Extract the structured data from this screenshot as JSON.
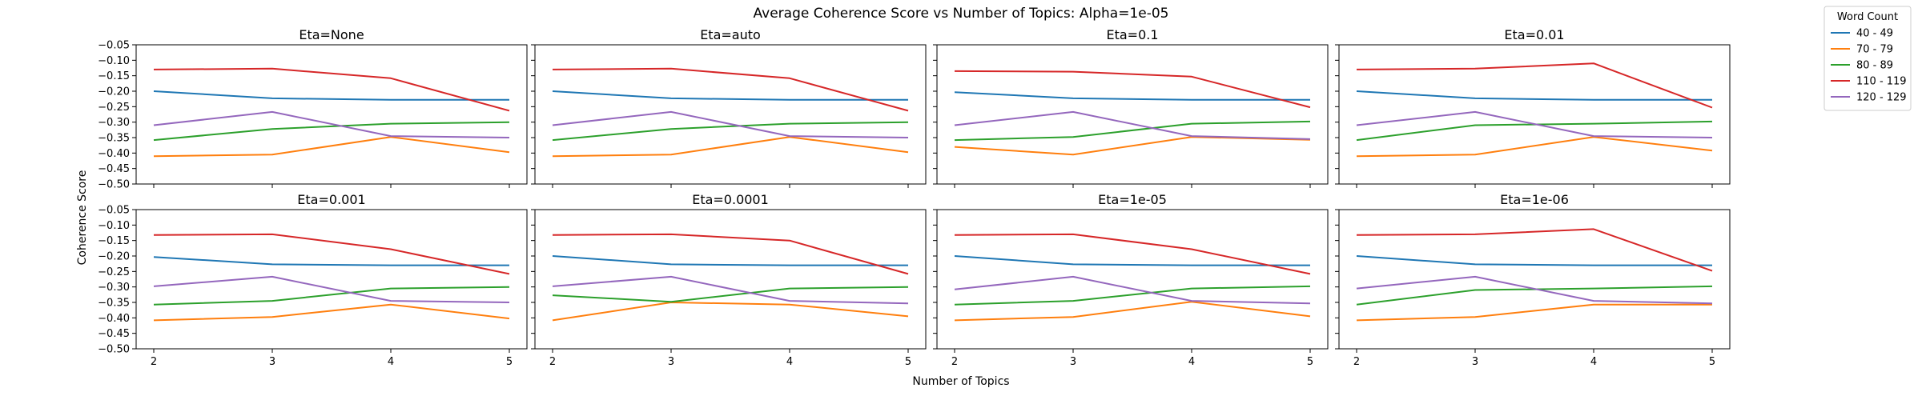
{
  "figure": {
    "title": "Average Coherence Score vs Number of Topics: Alpha=1e-05",
    "xlabel": "Number of Topics",
    "ylabel": "Coherence Score"
  },
  "legend": {
    "title": "Word Count",
    "position": "top-right, outside plot area"
  },
  "chart_data": [
    {
      "type": "line",
      "title": "Eta=None",
      "x": [
        2,
        3,
        4,
        5
      ],
      "xlim": [
        2,
        5
      ],
      "ylim": [
        -0.5,
        -0.05
      ],
      "yticks": [
        -0.05,
        -0.1,
        -0.15,
        -0.2,
        -0.25,
        -0.3,
        -0.35,
        -0.4,
        -0.45,
        -0.5
      ],
      "series": [
        {
          "name": "40 - 49",
          "color": "#1f77b4",
          "values": [
            -0.2,
            -0.223,
            -0.228,
            -0.228
          ]
        },
        {
          "name": "70 - 79",
          "color": "#ff7f0e",
          "values": [
            -0.41,
            -0.405,
            -0.348,
            -0.397
          ]
        },
        {
          "name": "80 - 89",
          "color": "#2ca02c",
          "values": [
            -0.358,
            -0.322,
            -0.305,
            -0.3
          ]
        },
        {
          "name": "110 - 119",
          "color": "#d62728",
          "values": [
            -0.13,
            -0.127,
            -0.158,
            -0.263
          ]
        },
        {
          "name": "120 - 129",
          "color": "#9467bd",
          "values": [
            -0.31,
            -0.267,
            -0.345,
            -0.35
          ]
        }
      ]
    },
    {
      "type": "line",
      "title": "Eta=auto",
      "x": [
        2,
        3,
        4,
        5
      ],
      "xlim": [
        2,
        5
      ],
      "ylim": [
        -0.5,
        -0.05
      ],
      "yticks": [
        -0.05,
        -0.1,
        -0.15,
        -0.2,
        -0.25,
        -0.3,
        -0.35,
        -0.4,
        -0.45,
        -0.5
      ],
      "series": [
        {
          "name": "40 - 49",
          "color": "#1f77b4",
          "values": [
            -0.2,
            -0.223,
            -0.228,
            -0.228
          ]
        },
        {
          "name": "70 - 79",
          "color": "#ff7f0e",
          "values": [
            -0.41,
            -0.405,
            -0.348,
            -0.397
          ]
        },
        {
          "name": "80 - 89",
          "color": "#2ca02c",
          "values": [
            -0.358,
            -0.322,
            -0.305,
            -0.3
          ]
        },
        {
          "name": "110 - 119",
          "color": "#d62728",
          "values": [
            -0.13,
            -0.127,
            -0.158,
            -0.263
          ]
        },
        {
          "name": "120 - 129",
          "color": "#9467bd",
          "values": [
            -0.31,
            -0.267,
            -0.345,
            -0.35
          ]
        }
      ]
    },
    {
      "type": "line",
      "title": "Eta=0.1",
      "x": [
        2,
        3,
        4,
        5
      ],
      "xlim": [
        2,
        5
      ],
      "ylim": [
        -0.5,
        -0.05
      ],
      "yticks": [
        -0.05,
        -0.1,
        -0.15,
        -0.2,
        -0.25,
        -0.3,
        -0.35,
        -0.4,
        -0.45,
        -0.5
      ],
      "series": [
        {
          "name": "40 - 49",
          "color": "#1f77b4",
          "values": [
            -0.203,
            -0.223,
            -0.228,
            -0.228
          ]
        },
        {
          "name": "70 - 79",
          "color": "#ff7f0e",
          "values": [
            -0.38,
            -0.405,
            -0.348,
            -0.357
          ]
        },
        {
          "name": "80 - 89",
          "color": "#2ca02c",
          "values": [
            -0.358,
            -0.348,
            -0.305,
            -0.298
          ]
        },
        {
          "name": "110 - 119",
          "color": "#d62728",
          "values": [
            -0.135,
            -0.137,
            -0.153,
            -0.252
          ]
        },
        {
          "name": "120 - 129",
          "color": "#9467bd",
          "values": [
            -0.31,
            -0.267,
            -0.345,
            -0.355
          ]
        }
      ]
    },
    {
      "type": "line",
      "title": "Eta=0.01",
      "x": [
        2,
        3,
        4,
        5
      ],
      "xlim": [
        2,
        5
      ],
      "ylim": [
        -0.5,
        -0.05
      ],
      "yticks": [
        -0.05,
        -0.1,
        -0.15,
        -0.2,
        -0.25,
        -0.3,
        -0.35,
        -0.4,
        -0.45,
        -0.5
      ],
      "series": [
        {
          "name": "40 - 49",
          "color": "#1f77b4",
          "values": [
            -0.2,
            -0.223,
            -0.228,
            -0.228
          ]
        },
        {
          "name": "70 - 79",
          "color": "#ff7f0e",
          "values": [
            -0.41,
            -0.405,
            -0.348,
            -0.392
          ]
        },
        {
          "name": "80 - 89",
          "color": "#2ca02c",
          "values": [
            -0.358,
            -0.31,
            -0.305,
            -0.298
          ]
        },
        {
          "name": "110 - 119",
          "color": "#d62728",
          "values": [
            -0.13,
            -0.127,
            -0.11,
            -0.253
          ]
        },
        {
          "name": "120 - 129",
          "color": "#9467bd",
          "values": [
            -0.31,
            -0.267,
            -0.345,
            -0.35
          ]
        }
      ]
    },
    {
      "type": "line",
      "title": "Eta=0.001",
      "x": [
        2,
        3,
        4,
        5
      ],
      "xlim": [
        2,
        5
      ],
      "ylim": [
        -0.5,
        -0.05
      ],
      "yticks": [
        -0.05,
        -0.1,
        -0.15,
        -0.2,
        -0.25,
        -0.3,
        -0.35,
        -0.4,
        -0.45,
        -0.5
      ],
      "series": [
        {
          "name": "40 - 49",
          "color": "#1f77b4",
          "values": [
            -0.203,
            -0.227,
            -0.23,
            -0.23
          ]
        },
        {
          "name": "70 - 79",
          "color": "#ff7f0e",
          "values": [
            -0.408,
            -0.397,
            -0.357,
            -0.402
          ]
        },
        {
          "name": "80 - 89",
          "color": "#2ca02c",
          "values": [
            -0.357,
            -0.345,
            -0.305,
            -0.3
          ]
        },
        {
          "name": "110 - 119",
          "color": "#d62728",
          "values": [
            -0.132,
            -0.13,
            -0.178,
            -0.258
          ]
        },
        {
          "name": "120 - 129",
          "color": "#9467bd",
          "values": [
            -0.298,
            -0.267,
            -0.345,
            -0.35
          ]
        }
      ]
    },
    {
      "type": "line",
      "title": "Eta=0.0001",
      "x": [
        2,
        3,
        4,
        5
      ],
      "xlim": [
        2,
        5
      ],
      "ylim": [
        -0.5,
        -0.05
      ],
      "yticks": [
        -0.05,
        -0.1,
        -0.15,
        -0.2,
        -0.25,
        -0.3,
        -0.35,
        -0.4,
        -0.45,
        -0.5
      ],
      "series": [
        {
          "name": "40 - 49",
          "color": "#1f77b4",
          "values": [
            -0.2,
            -0.227,
            -0.23,
            -0.23
          ]
        },
        {
          "name": "70 - 79",
          "color": "#ff7f0e",
          "values": [
            -0.408,
            -0.35,
            -0.357,
            -0.395
          ]
        },
        {
          "name": "80 - 89",
          "color": "#2ca02c",
          "values": [
            -0.327,
            -0.348,
            -0.305,
            -0.3
          ]
        },
        {
          "name": "110 - 119",
          "color": "#d62728",
          "values": [
            -0.132,
            -0.13,
            -0.15,
            -0.258
          ]
        },
        {
          "name": "120 - 129",
          "color": "#9467bd",
          "values": [
            -0.298,
            -0.267,
            -0.345,
            -0.353
          ]
        }
      ]
    },
    {
      "type": "line",
      "title": "Eta=1e-05",
      "x": [
        2,
        3,
        4,
        5
      ],
      "xlim": [
        2,
        5
      ],
      "ylim": [
        -0.5,
        -0.05
      ],
      "yticks": [
        -0.05,
        -0.1,
        -0.15,
        -0.2,
        -0.25,
        -0.3,
        -0.35,
        -0.4,
        -0.45,
        -0.5
      ],
      "series": [
        {
          "name": "40 - 49",
          "color": "#1f77b4",
          "values": [
            -0.2,
            -0.227,
            -0.23,
            -0.23
          ]
        },
        {
          "name": "70 - 79",
          "color": "#ff7f0e",
          "values": [
            -0.408,
            -0.397,
            -0.348,
            -0.395
          ]
        },
        {
          "name": "80 - 89",
          "color": "#2ca02c",
          "values": [
            -0.357,
            -0.345,
            -0.305,
            -0.298
          ]
        },
        {
          "name": "110 - 119",
          "color": "#d62728",
          "values": [
            -0.132,
            -0.13,
            -0.178,
            -0.258
          ]
        },
        {
          "name": "120 - 129",
          "color": "#9467bd",
          "values": [
            -0.308,
            -0.267,
            -0.345,
            -0.353
          ]
        }
      ]
    },
    {
      "type": "line",
      "title": "Eta=1e-06",
      "x": [
        2,
        3,
        4,
        5
      ],
      "xlim": [
        2,
        5
      ],
      "ylim": [
        -0.5,
        -0.05
      ],
      "yticks": [
        -0.05,
        -0.1,
        -0.15,
        -0.2,
        -0.25,
        -0.3,
        -0.35,
        -0.4,
        -0.45,
        -0.5
      ],
      "series": [
        {
          "name": "40 - 49",
          "color": "#1f77b4",
          "values": [
            -0.2,
            -0.227,
            -0.23,
            -0.23
          ]
        },
        {
          "name": "70 - 79",
          "color": "#ff7f0e",
          "values": [
            -0.408,
            -0.397,
            -0.357,
            -0.357
          ]
        },
        {
          "name": "80 - 89",
          "color": "#2ca02c",
          "values": [
            -0.357,
            -0.31,
            -0.305,
            -0.298
          ]
        },
        {
          "name": "110 - 119",
          "color": "#d62728",
          "values": [
            -0.132,
            -0.13,
            -0.113,
            -0.248
          ]
        },
        {
          "name": "120 - 129",
          "color": "#9467bd",
          "values": [
            -0.305,
            -0.267,
            -0.345,
            -0.353
          ]
        }
      ]
    }
  ]
}
